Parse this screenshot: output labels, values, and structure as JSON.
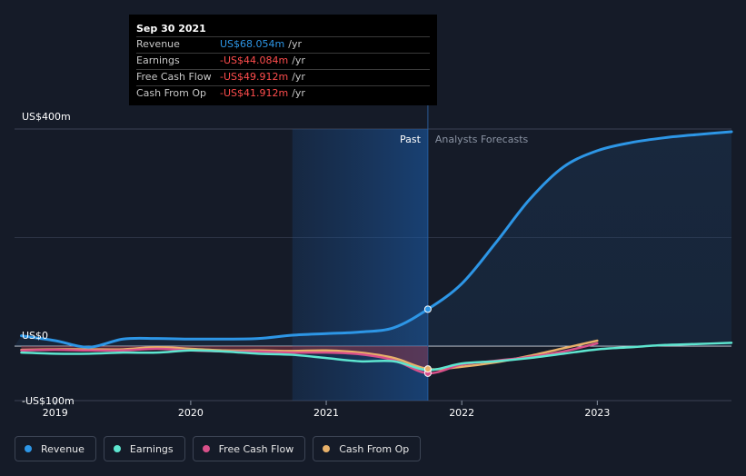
{
  "tooltip": {
    "date": "Sep 30 2021",
    "rows": [
      {
        "label": "Revenue",
        "value": "US$68.054m",
        "unit": "/yr",
        "color": "#2d96e6"
      },
      {
        "label": "Earnings",
        "value": "-US$44.084m",
        "unit": "/yr",
        "color": "#ff4d4d"
      },
      {
        "label": "Free Cash Flow",
        "value": "-US$49.912m",
        "unit": "/yr",
        "color": "#ff4d4d"
      },
      {
        "label": "Cash From Op",
        "value": "-US$41.912m",
        "unit": "/yr",
        "color": "#ff4d4d"
      }
    ]
  },
  "legend": [
    {
      "label": "Revenue",
      "color": "#2d96e6"
    },
    {
      "label": "Earnings",
      "color": "#5ee6d0"
    },
    {
      "label": "Free Cash Flow",
      "color": "#d9508a"
    },
    {
      "label": "Cash From Op",
      "color": "#e8b16a"
    }
  ],
  "chart_data": {
    "type": "line",
    "title": "",
    "xlabel": "",
    "ylabel": "",
    "xlim": [
      2018.7,
      2023.99
    ],
    "ylim": [
      -100,
      400
    ],
    "y_tick_labels": [
      {
        "value": 400,
        "label": "US$400m"
      },
      {
        "value": 0,
        "label": "US$0"
      },
      {
        "value": -100,
        "label": "-US$100m"
      }
    ],
    "x_ticks": [
      2019,
      2020,
      2021,
      2022,
      2023
    ],
    "x_tick_labels": [
      "2019",
      "2020",
      "2021",
      "2022",
      "2023"
    ],
    "divider_x": 2021.75,
    "highlight_range": [
      2020.75,
      2021.75
    ],
    "past_label": "Past",
    "forecast_label": "Analysts Forecasts",
    "series": [
      {
        "name": "Revenue",
        "color": "#2d96e6",
        "x": [
          2018.75,
          2019.0,
          2019.25,
          2019.5,
          2019.75,
          2020.0,
          2020.25,
          2020.5,
          2020.75,
          2021.0,
          2021.25,
          2021.5,
          2021.75,
          2022.0,
          2022.25,
          2022.5,
          2022.75,
          2023.0,
          2023.25,
          2023.5,
          2023.75,
          2023.99
        ],
        "values": [
          19,
          10,
          -2,
          13,
          14,
          13,
          13,
          14,
          20,
          23,
          26,
          34,
          68,
          115,
          190,
          270,
          330,
          360,
          375,
          384,
          390,
          395
        ]
      },
      {
        "name": "Earnings",
        "color": "#5ee6d0",
        "x": [
          2018.75,
          2019.0,
          2019.25,
          2019.5,
          2019.75,
          2020.0,
          2020.25,
          2020.5,
          2020.75,
          2021.0,
          2021.25,
          2021.5,
          2021.75,
          2022.0,
          2022.25,
          2022.5,
          2022.75,
          2023.0,
          2023.25,
          2023.5,
          2023.75,
          2023.99
        ],
        "values": [
          -12,
          -14,
          -14,
          -12,
          -12,
          -8,
          -10,
          -14,
          -16,
          -22,
          -28,
          -28,
          -44,
          -32,
          -28,
          -22,
          -14,
          -6,
          -2,
          2,
          4,
          6
        ]
      },
      {
        "name": "Free Cash Flow",
        "color": "#d9508a",
        "x": [
          2018.75,
          2019.0,
          2019.25,
          2019.5,
          2019.75,
          2020.0,
          2020.25,
          2020.5,
          2020.75,
          2021.0,
          2021.25,
          2021.5,
          2021.75,
          2022.0,
          2022.25,
          2022.5,
          2022.75,
          2023.0
        ],
        "values": [
          -8,
          -7,
          -8,
          -8,
          -5,
          -8,
          -10,
          -10,
          -12,
          -12,
          -15,
          -26,
          -50,
          -34,
          -27,
          -20,
          -10,
          5
        ]
      },
      {
        "name": "Cash From Op",
        "color": "#e8b16a",
        "x": [
          2018.75,
          2019.0,
          2019.25,
          2019.5,
          2019.75,
          2020.0,
          2020.25,
          2020.5,
          2020.75,
          2021.0,
          2021.25,
          2021.5,
          2021.75,
          2022.0,
          2022.25,
          2022.5,
          2022.75,
          2023.0
        ],
        "values": [
          -7,
          -6,
          -6,
          -6,
          -2,
          -5,
          -8,
          -8,
          -9,
          -8,
          -12,
          -22,
          -42,
          -38,
          -30,
          -18,
          -4,
          10
        ]
      }
    ]
  }
}
